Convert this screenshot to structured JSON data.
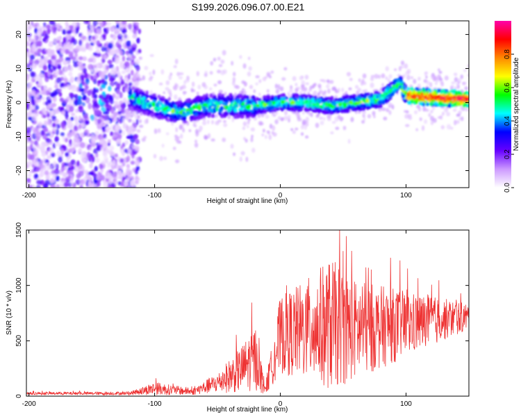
{
  "title": "S199.2026.096.07.00.E21",
  "chart_data": [
    {
      "type": "heatmap",
      "name": "spectrogram",
      "xlabel": "Height of straight line (km)",
      "ylabel": "Frequency (Hz)",
      "xlim": [
        -202,
        150
      ],
      "ylim": [
        -25,
        24
      ],
      "xticks": [
        -200,
        -100,
        0,
        100
      ],
      "yticks": [
        -20,
        -10,
        0,
        10,
        20
      ],
      "colorbar": {
        "label": "Normalized spectral amplitude",
        "range": [
          0,
          1
        ],
        "ticks": [
          0.0,
          0.2,
          0.4,
          0.6,
          0.8
        ],
        "tick_labels": [
          "0.0",
          "0.2",
          "0.4",
          "0.6",
          "0.8"
        ],
        "colors": [
          "#ffffff",
          "#cc99ff",
          "#6600ff",
          "#0000ff",
          "#00ffff",
          "#00ff00",
          "#ffff00",
          "#ff8800",
          "#ff0000",
          "#ff00aa"
        ]
      },
      "ridge": [
        {
          "x": -120,
          "y": 1.5
        },
        {
          "x": -100,
          "y": -1
        },
        {
          "x": -80,
          "y": -3
        },
        {
          "x": -60,
          "y": -1
        },
        {
          "x": -40,
          "y": -1
        },
        {
          "x": -20,
          "y": -1
        },
        {
          "x": 0,
          "y": 0
        },
        {
          "x": 20,
          "y": 0
        },
        {
          "x": 40,
          "y": -1
        },
        {
          "x": 60,
          "y": 0
        },
        {
          "x": 80,
          "y": 1
        },
        {
          "x": 95,
          "y": 6
        },
        {
          "x": 100,
          "y": 2
        },
        {
          "x": 120,
          "y": 1.5
        },
        {
          "x": 150,
          "y": 1
        }
      ]
    },
    {
      "type": "line",
      "name": "snr",
      "xlabel": "Height of straight line (km)",
      "ylabel": "SNR (10 * v/v)",
      "xlim": [
        -202,
        150
      ],
      "ylim": [
        0,
        1500
      ],
      "xticks": [
        -200,
        -100,
        0,
        100
      ],
      "yticks": [
        0,
        500,
        1000,
        1500
      ],
      "color": "#ee3333",
      "envelope": [
        {
          "x": -202,
          "base": 25,
          "noise": 12
        },
        {
          "x": -120,
          "base": 25,
          "noise": 15
        },
        {
          "x": -100,
          "base": 70,
          "noise": 60
        },
        {
          "x": -70,
          "base": 40,
          "noise": 30
        },
        {
          "x": -50,
          "base": 120,
          "noise": 90
        },
        {
          "x": -30,
          "base": 250,
          "noise": 220
        },
        {
          "x": -20,
          "base": 350,
          "noise": 300
        },
        {
          "x": -12,
          "base": 60,
          "noise": 50
        },
        {
          "x": 0,
          "base": 550,
          "noise": 350
        },
        {
          "x": 20,
          "base": 600,
          "noise": 450
        },
        {
          "x": 40,
          "base": 650,
          "noise": 600
        },
        {
          "x": 60,
          "base": 600,
          "noise": 450
        },
        {
          "x": 100,
          "base": 650,
          "noise": 300
        },
        {
          "x": 150,
          "base": 720,
          "noise": 120
        }
      ]
    }
  ]
}
